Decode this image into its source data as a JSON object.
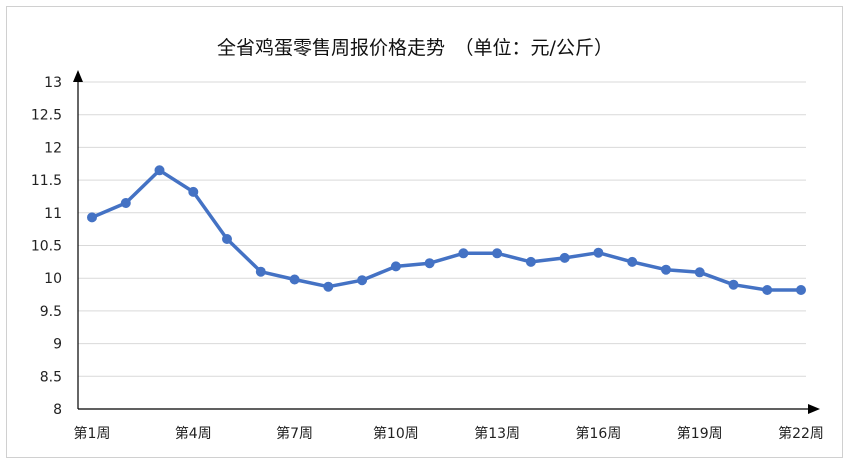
{
  "chart_data": {
    "type": "line",
    "title": "全省鸡蛋零售周报价格走势　（单位：元/公斤）",
    "xlabel": "",
    "ylabel": "",
    "ylim": [
      8,
      13
    ],
    "yticks": [
      "8",
      "8.5",
      "9",
      "9.5",
      "10",
      "10.5",
      "11",
      "11.5",
      "12",
      "12.5",
      "13"
    ],
    "xtick_labels": [
      "第1周",
      "第4周",
      "第7周",
      "第10周",
      "第13周",
      "第16周",
      "第19周",
      "第22周"
    ],
    "xtick_indices": [
      0,
      3,
      6,
      9,
      12,
      15,
      18,
      21
    ],
    "grid": true,
    "legend": "none",
    "color": "#4472C4",
    "series": [
      {
        "values": [
          10.93,
          11.15,
          11.65,
          11.32,
          10.6,
          10.1,
          9.98,
          9.87,
          9.97,
          10.18,
          10.23,
          10.38,
          10.38,
          10.25,
          10.31,
          10.39,
          10.25,
          10.13,
          10.09,
          9.9,
          9.82,
          9.82
        ]
      }
    ]
  }
}
